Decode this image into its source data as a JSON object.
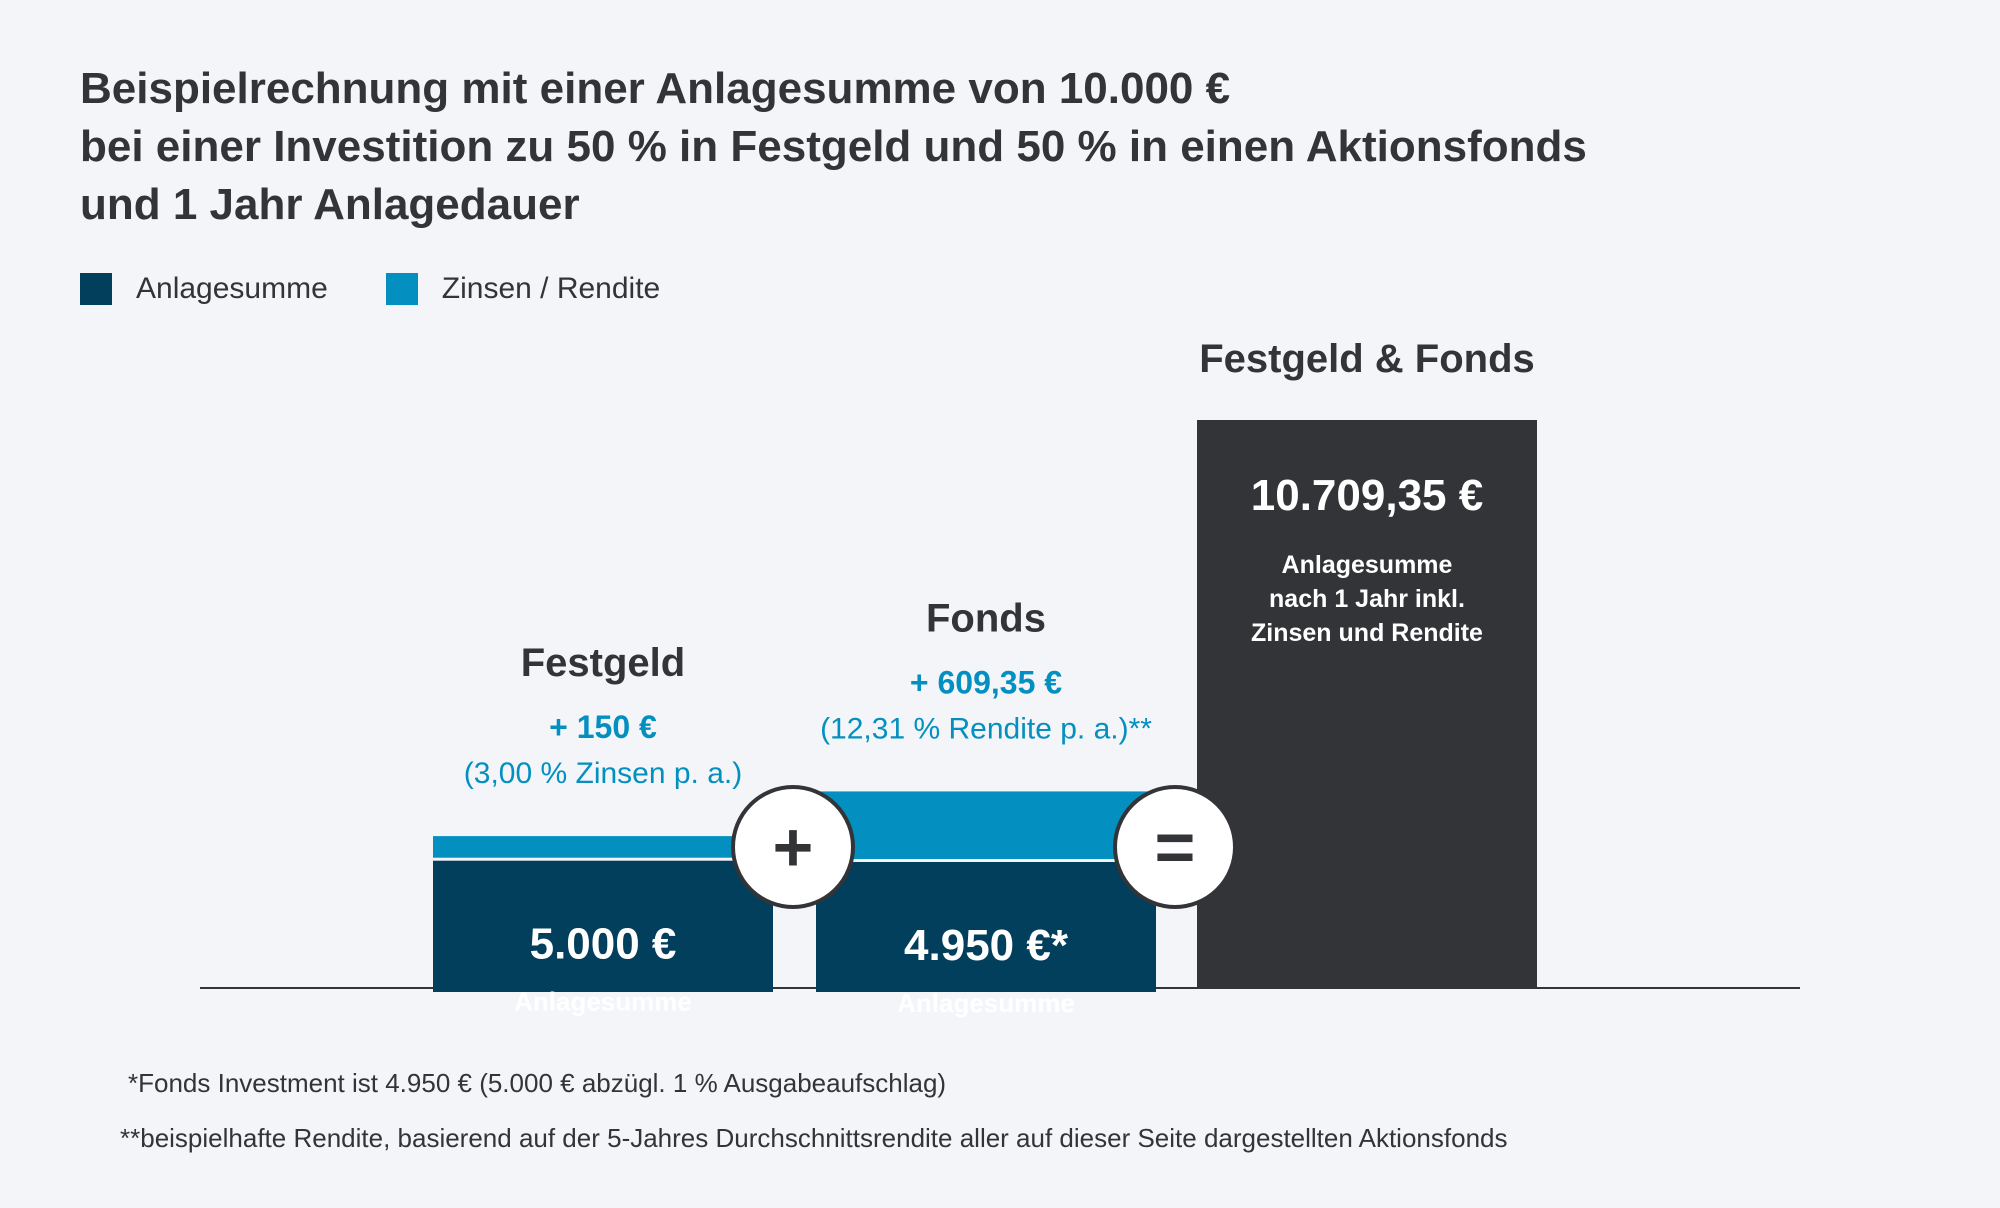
{
  "title_lines": [
    "Beispielrechnung mit einer Anlagesumme von 10.000 €",
    "bei einer Investition zu 50 % in Festgeld und 50 % in einen Aktionsfonds",
    "und 1 Jahr Anlagedauer"
  ],
  "legend": [
    {
      "label": "Anlagesumme",
      "color": "#023f5c"
    },
    {
      "label": "Zinsen / Rendite",
      "color": "#0390c0"
    }
  ],
  "colors": {
    "anlage": "#023f5c",
    "zinsen": "#0390c0",
    "total": "#333438",
    "accent": "#0390c0"
  },
  "chart_data": {
    "type": "bar",
    "stacked": true,
    "categories": [
      "Festgeld",
      "Fonds",
      "Festgeld & Fonds"
    ],
    "series": [
      {
        "name": "Anlagesumme",
        "values": [
          5000,
          4950,
          10709.35
        ]
      },
      {
        "name": "Zinsen / Rendite",
        "values": [
          150,
          609.35,
          0
        ]
      }
    ],
    "ylim": [
      0,
      11500
    ],
    "bars": [
      {
        "category": "Festgeld",
        "gain_label": "+ 150 €",
        "rate_label": "(3,00 % Zinsen p. a.)",
        "value_label": "5.000 €",
        "sub_label": "Anlagesumme"
      },
      {
        "category": "Fonds",
        "gain_label": "+ 609,35 €",
        "rate_label": "(12,31 %  Rendite p. a.)**",
        "value_label": "4.950 €*",
        "sub_label": "Anlagesumme"
      },
      {
        "category": "Festgeld & Fonds",
        "value_label": "10.709,35 €",
        "sub_lines": [
          "Anlagesumme",
          "nach 1 Jahr inkl.",
          "Zinsen und Rendite"
        ]
      }
    ],
    "operators": [
      "+",
      "="
    ]
  },
  "footnotes": [
    "*Fonds Investment ist 4.950 € (5.000 € abzügl. 1 % Ausgabeaufschlag)",
    "**beispielhafte Rendite, basierend auf der 5-Jahres Durchschnittsrendite aller auf dieser Seite dargestellten Aktionsfonds"
  ]
}
